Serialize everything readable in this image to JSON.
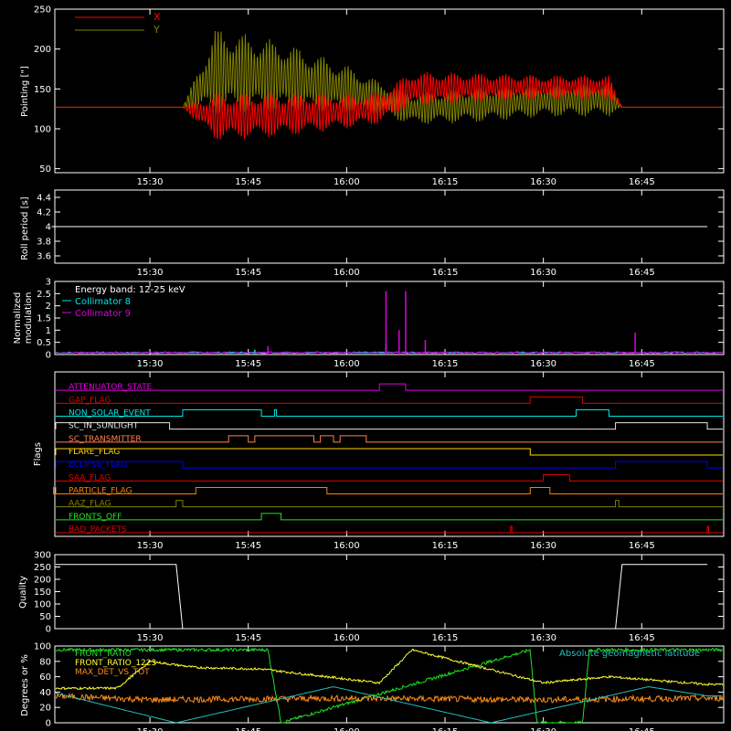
{
  "colors": {
    "background": "#000000",
    "axis": "#ffffff",
    "x_pointing": "#ff0000",
    "y_pointing": "#808000",
    "collimator8": "#00e5e5",
    "collimator9": "#e000e0",
    "front_ratio": "#22e022",
    "front_ratio_1223": "#ffff33",
    "max_det_vs_tot": "#ff8c1a",
    "geomagnetic": "#20c0c0"
  },
  "time_ticks": [
    "15:30",
    "15:45",
    "16:00",
    "16:15",
    "16:30",
    "16:45"
  ],
  "chart_data": [
    {
      "type": "line",
      "xlabel": "",
      "ylabel": "Pointing [\"]",
      "ylim": [
        45,
        250
      ],
      "yticks": [
        50,
        100,
        150,
        200,
        250
      ],
      "xlim_minutes_after_1500": [
        15.5,
        69.5
      ],
      "grid": false,
      "legend": "top-left",
      "series": [
        {
          "name": "X",
          "x": [
            "15:15",
            "15:35",
            "15:40",
            "15:50",
            "16:00",
            "16:05",
            "16:10",
            "16:20",
            "16:30",
            "16:40",
            "16:42",
            "16:55"
          ],
          "y_center": [
            127,
            127,
            115,
            118,
            122,
            126,
            150,
            152,
            152,
            152,
            127,
            127
          ],
          "y_spread": [
            0,
            0,
            30,
            28,
            22,
            20,
            22,
            18,
            15,
            15,
            0,
            0
          ]
        },
        {
          "name": "Y",
          "x": [
            "15:15",
            "15:35",
            "15:40",
            "15:50",
            "16:00",
            "16:05",
            "16:10",
            "16:20",
            "16:30",
            "16:40",
            "16:42",
            "16:55"
          ],
          "y_center": [
            127,
            127,
            172,
            165,
            150,
            138,
            125,
            130,
            135,
            137,
            127,
            127
          ],
          "y_spread": [
            0,
            0,
            55,
            45,
            30,
            22,
            20,
            22,
            20,
            22,
            0,
            0
          ]
        }
      ]
    },
    {
      "type": "line",
      "ylabel": "Roll period [s]",
      "ylim": [
        3.5,
        4.5
      ],
      "yticks": [
        3.6,
        3.8,
        4.0,
        4.2,
        4.4
      ],
      "series": [
        {
          "name": "",
          "x": [
            "15:15",
            "16:55"
          ],
          "y": [
            4.0,
            4.0
          ]
        }
      ]
    },
    {
      "type": "line",
      "ylabel": [
        "Normalized",
        "modulation"
      ],
      "ylim": [
        0,
        3.0
      ],
      "yticks": [
        0.0,
        0.5,
        1.0,
        1.5,
        2.0,
        2.5,
        3.0
      ],
      "legend": "top-left",
      "annotation": "Energy band: 12-25 keV",
      "series": [
        {
          "name": "Collimator 8",
          "baseline": 0.05,
          "spikes": [
            [
              "15:46",
              0.2
            ],
            [
              "16:06",
              0.45
            ]
          ]
        },
        {
          "name": "Collimator 9",
          "baseline": 0.05,
          "spikes": [
            [
              "15:48",
              0.35
            ],
            [
              "16:06",
              2.6
            ],
            [
              "16:08",
              1.0
            ],
            [
              "16:09",
              2.6
            ],
            [
              "16:12",
              0.6
            ],
            [
              "16:44",
              0.9
            ]
          ]
        }
      ]
    },
    {
      "type": "line",
      "ylabel": "Flags",
      "series": [
        {
          "name": "ATTENUATOR_STATE",
          "color": "#e000e0",
          "high": [
            [
              "16:05",
              "16:09"
            ]
          ]
        },
        {
          "name": "GAP_FLAG",
          "color": "#e00000",
          "high": [
            [
              "16:28",
              "16:36"
            ]
          ]
        },
        {
          "name": "NON_SOLAR_EVENT",
          "color": "#00e5e5",
          "high": [
            [
              "15:35",
              "15:47"
            ],
            [
              "15:49",
              "15:49.3"
            ],
            [
              "16:35",
              "16:40"
            ]
          ]
        },
        {
          "name": "SC_IN_SUNLIGHT",
          "color": "#e5e5e5",
          "high": [
            [
              "15:15",
              "15:33"
            ],
            [
              "16:41",
              "16:55"
            ]
          ]
        },
        {
          "name": "SC_TRANSMITTER",
          "color": "#ff7f50",
          "high": [
            [
              "15:42",
              "15:45"
            ],
            [
              "15:46",
              "15:55"
            ],
            [
              "15:56",
              "15:58"
            ],
            [
              "15:59",
              "16:03"
            ]
          ]
        },
        {
          "name": "FLARE_FLAG",
          "color": "#ffd700",
          "high": [
            [
              "15:15",
              "16:28"
            ]
          ]
        },
        {
          "name": "ECLIPSE_FLAG",
          "color": "#0000ff",
          "high": [
            [
              "15:15",
              "15:35"
            ],
            [
              "16:41",
              "16:55"
            ]
          ]
        },
        {
          "name": "SAA_FLAG",
          "color": "#e00000",
          "high": [
            [
              "16:30",
              "16:34"
            ]
          ]
        },
        {
          "name": "PARTICLE_FLAG",
          "color": "#ff7f00",
          "high": [
            [
              "15:15",
              "15:15.3"
            ],
            [
              "15:37",
              "15:57"
            ],
            [
              "16:28",
              "16:31"
            ]
          ]
        },
        {
          "name": "AAZ_FLAG",
          "color": "#808000",
          "high": [
            [
              "15:34",
              "15:35"
            ],
            [
              "16:41",
              "16:41.5"
            ]
          ]
        },
        {
          "name": "FRONTS_OFF",
          "color": "#22e022",
          "high": [
            [
              "15:47",
              "15:50"
            ]
          ]
        },
        {
          "name": "BAD_PACKETS",
          "color": "#e00000",
          "high": [
            [
              "16:25",
              "16:25.2"
            ],
            [
              "16:55",
              "16:55.2"
            ]
          ]
        }
      ]
    },
    {
      "type": "line",
      "ylabel": "Quality",
      "ylim": [
        0,
        300
      ],
      "yticks": [
        0,
        50,
        100,
        150,
        200,
        250,
        300
      ],
      "series": [
        {
          "name": "",
          "x": [
            "15:15",
            "15:34",
            "15:35",
            "16:41",
            "16:42",
            "16:55"
          ],
          "y": [
            260,
            260,
            0,
            0,
            260,
            260
          ]
        }
      ]
    },
    {
      "type": "line",
      "ylabel": "Degrees or %",
      "ylim": [
        0,
        100
      ],
      "yticks": [
        0,
        20,
        40,
        60,
        80,
        100
      ],
      "legend": "top",
      "series": [
        {
          "name": "FRONT_RATIO",
          "x": [
            "15:15",
            "15:45",
            "15:48",
            "15:50",
            "16:28",
            "16:29",
            "16:36",
            "16:37",
            "16:55"
          ],
          "y": [
            95,
            95,
            95,
            0,
            95,
            0,
            0,
            95,
            95
          ]
        },
        {
          "name": "FRONT_RATIO_1223",
          "x": [
            "15:15",
            "15:25",
            "15:30",
            "15:37",
            "15:47",
            "16:05",
            "16:10",
            "16:30",
            "16:40",
            "16:55"
          ],
          "y": [
            45,
            45,
            80,
            72,
            70,
            52,
            95,
            52,
            60,
            50
          ]
        },
        {
          "name": "MAX_DET_VS_TOT",
          "x": [
            "15:15",
            "15:30",
            "16:00",
            "16:30",
            "16:55"
          ],
          "y": [
            35,
            30,
            32,
            30,
            32
          ]
        },
        {
          "name": "Absolute geomagnetic latitude",
          "x": [
            "15:15",
            "15:34",
            "15:58",
            "16:22",
            "16:46",
            "16:55"
          ],
          "y": [
            40,
            0,
            47,
            0,
            47,
            35
          ]
        }
      ]
    }
  ]
}
